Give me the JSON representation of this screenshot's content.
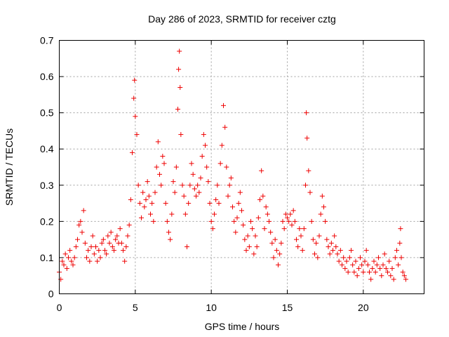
{
  "chart_data": {
    "type": "scatter",
    "title": "Day 286 of 2023, SRMTID for receiver cztg",
    "xlabel": "GPS time / hours",
    "ylabel": "SRMTID / TECUs",
    "xlim": [
      0,
      24
    ],
    "ylim": [
      0,
      0.7
    ],
    "x_ticks": [
      0,
      5,
      10,
      15,
      20
    ],
    "x_tick_labels": [
      "0",
      "5",
      "10",
      "15",
      "20"
    ],
    "y_ticks": [
      0,
      0.1,
      0.2,
      0.3,
      0.4,
      0.5,
      0.6,
      0.7
    ],
    "y_tick_labels": [
      "0",
      "0.1",
      "0.2",
      "0.3",
      "0.4",
      "0.5",
      "0.6",
      "0.7"
    ],
    "grid": true,
    "marker": "+",
    "series_color": "#ee0000",
    "series": [
      {
        "name": "SRMTID",
        "points": [
          [
            0.0,
            0.06
          ],
          [
            0.1,
            0.04
          ],
          [
            0.2,
            0.09
          ],
          [
            0.3,
            0.08
          ],
          [
            0.4,
            0.11
          ],
          [
            0.5,
            0.07
          ],
          [
            0.6,
            0.1
          ],
          [
            0.7,
            0.12
          ],
          [
            0.8,
            0.09
          ],
          [
            0.9,
            0.08
          ],
          [
            1.0,
            0.1
          ],
          [
            1.1,
            0.13
          ],
          [
            1.2,
            0.15
          ],
          [
            1.3,
            0.19
          ],
          [
            1.4,
            0.2
          ],
          [
            1.5,
            0.17
          ],
          [
            1.6,
            0.23
          ],
          [
            1.7,
            0.14
          ],
          [
            1.8,
            0.1
          ],
          [
            1.9,
            0.12
          ],
          [
            2.0,
            0.09
          ],
          [
            2.1,
            0.13
          ],
          [
            2.2,
            0.16
          ],
          [
            2.3,
            0.11
          ],
          [
            2.4,
            0.13
          ],
          [
            2.5,
            0.09
          ],
          [
            2.6,
            0.12
          ],
          [
            2.7,
            0.1
          ],
          [
            2.8,
            0.14
          ],
          [
            2.9,
            0.15
          ],
          [
            3.0,
            0.12
          ],
          [
            3.1,
            0.11
          ],
          [
            3.2,
            0.16
          ],
          [
            3.3,
            0.14
          ],
          [
            3.4,
            0.17
          ],
          [
            3.5,
            0.13
          ],
          [
            3.6,
            0.12
          ],
          [
            3.7,
            0.15
          ],
          [
            3.8,
            0.16
          ],
          [
            3.9,
            0.14
          ],
          [
            4.0,
            0.18
          ],
          [
            4.1,
            0.14
          ],
          [
            4.2,
            0.12
          ],
          [
            4.3,
            0.09
          ],
          [
            4.4,
            0.13
          ],
          [
            4.5,
            0.16
          ],
          [
            4.6,
            0.19
          ],
          [
            4.7,
            0.26
          ],
          [
            4.8,
            0.39
          ],
          [
            4.9,
            0.54
          ],
          [
            4.95,
            0.59
          ],
          [
            5.0,
            0.49
          ],
          [
            5.1,
            0.44
          ],
          [
            5.2,
            0.3
          ],
          [
            5.3,
            0.25
          ],
          [
            5.4,
            0.21
          ],
          [
            5.5,
            0.28
          ],
          [
            5.6,
            0.24
          ],
          [
            5.7,
            0.26
          ],
          [
            5.8,
            0.31
          ],
          [
            5.9,
            0.27
          ],
          [
            6.0,
            0.22
          ],
          [
            6.1,
            0.25
          ],
          [
            6.2,
            0.2
          ],
          [
            6.3,
            0.28
          ],
          [
            6.4,
            0.35
          ],
          [
            6.5,
            0.42
          ],
          [
            6.6,
            0.33
          ],
          [
            6.7,
            0.3
          ],
          [
            6.8,
            0.38
          ],
          [
            6.9,
            0.36
          ],
          [
            7.0,
            0.25
          ],
          [
            7.1,
            0.2
          ],
          [
            7.2,
            0.17
          ],
          [
            7.3,
            0.15
          ],
          [
            7.4,
            0.22
          ],
          [
            7.5,
            0.31
          ],
          [
            7.6,
            0.28
          ],
          [
            7.7,
            0.35
          ],
          [
            7.8,
            0.51
          ],
          [
            7.85,
            0.62
          ],
          [
            7.9,
            0.67
          ],
          [
            7.95,
            0.57
          ],
          [
            8.0,
            0.44
          ],
          [
            8.1,
            0.3
          ],
          [
            8.2,
            0.27
          ],
          [
            8.3,
            0.22
          ],
          [
            8.4,
            0.13
          ],
          [
            8.5,
            0.25
          ],
          [
            8.6,
            0.3
          ],
          [
            8.7,
            0.36
          ],
          [
            8.8,
            0.33
          ],
          [
            8.9,
            0.29
          ],
          [
            9.0,
            0.27
          ],
          [
            9.1,
            0.3
          ],
          [
            9.2,
            0.28
          ],
          [
            9.3,
            0.32
          ],
          [
            9.4,
            0.38
          ],
          [
            9.5,
            0.44
          ],
          [
            9.6,
            0.41
          ],
          [
            9.7,
            0.35
          ],
          [
            9.8,
            0.31
          ],
          [
            9.9,
            0.25
          ],
          [
            10.0,
            0.2
          ],
          [
            10.1,
            0.18
          ],
          [
            10.2,
            0.22
          ],
          [
            10.3,
            0.26
          ],
          [
            10.4,
            0.3
          ],
          [
            10.5,
            0.25
          ],
          [
            10.6,
            0.36
          ],
          [
            10.7,
            0.41
          ],
          [
            10.8,
            0.52
          ],
          [
            10.9,
            0.46
          ],
          [
            11.0,
            0.35
          ],
          [
            11.1,
            0.27
          ],
          [
            11.2,
            0.3
          ],
          [
            11.3,
            0.32
          ],
          [
            11.4,
            0.24
          ],
          [
            11.5,
            0.2
          ],
          [
            11.6,
            0.17
          ],
          [
            11.7,
            0.21
          ],
          [
            11.8,
            0.25
          ],
          [
            11.9,
            0.28
          ],
          [
            12.0,
            0.23
          ],
          [
            12.1,
            0.19
          ],
          [
            12.2,
            0.15
          ],
          [
            12.3,
            0.12
          ],
          [
            12.4,
            0.16
          ],
          [
            12.5,
            0.13
          ],
          [
            12.6,
            0.2
          ],
          [
            12.7,
            0.18
          ],
          [
            12.8,
            0.11
          ],
          [
            12.9,
            0.16
          ],
          [
            13.0,
            0.13
          ],
          [
            13.1,
            0.21
          ],
          [
            13.2,
            0.26
          ],
          [
            13.3,
            0.34
          ],
          [
            13.4,
            0.27
          ],
          [
            13.5,
            0.18
          ],
          [
            13.6,
            0.24
          ],
          [
            13.7,
            0.22
          ],
          [
            13.8,
            0.2
          ],
          [
            13.9,
            0.17
          ],
          [
            14.0,
            0.14
          ],
          [
            14.1,
            0.1
          ],
          [
            14.2,
            0.15
          ],
          [
            14.3,
            0.12
          ],
          [
            14.4,
            0.08
          ],
          [
            14.5,
            0.11
          ],
          [
            14.6,
            0.14
          ],
          [
            14.7,
            0.2
          ],
          [
            14.8,
            0.18
          ],
          [
            14.9,
            0.22
          ],
          [
            15.0,
            0.21
          ],
          [
            15.1,
            0.2
          ],
          [
            15.2,
            0.22
          ],
          [
            15.3,
            0.19
          ],
          [
            15.4,
            0.23
          ],
          [
            15.5,
            0.2
          ],
          [
            15.6,
            0.15
          ],
          [
            15.7,
            0.13
          ],
          [
            15.8,
            0.18
          ],
          [
            15.9,
            0.16
          ],
          [
            16.0,
            0.12
          ],
          [
            16.1,
            0.18
          ],
          [
            16.2,
            0.3
          ],
          [
            16.25,
            0.5
          ],
          [
            16.3,
            0.43
          ],
          [
            16.4,
            0.34
          ],
          [
            16.5,
            0.28
          ],
          [
            16.6,
            0.2
          ],
          [
            16.7,
            0.15
          ],
          [
            16.8,
            0.11
          ],
          [
            16.9,
            0.14
          ],
          [
            17.0,
            0.1
          ],
          [
            17.1,
            0.16
          ],
          [
            17.2,
            0.22
          ],
          [
            17.3,
            0.27
          ],
          [
            17.4,
            0.24
          ],
          [
            17.5,
            0.2
          ],
          [
            17.6,
            0.15
          ],
          [
            17.7,
            0.13
          ],
          [
            17.8,
            0.11
          ],
          [
            17.9,
            0.14
          ],
          [
            18.0,
            0.12
          ],
          [
            18.1,
            0.16
          ],
          [
            18.2,
            0.13
          ],
          [
            18.3,
            0.11
          ],
          [
            18.4,
            0.09
          ],
          [
            18.5,
            0.12
          ],
          [
            18.6,
            0.08
          ],
          [
            18.7,
            0.1
          ],
          [
            18.8,
            0.07
          ],
          [
            18.9,
            0.09
          ],
          [
            19.0,
            0.06
          ],
          [
            19.1,
            0.1
          ],
          [
            19.2,
            0.12
          ],
          [
            19.3,
            0.08
          ],
          [
            19.4,
            0.06
          ],
          [
            19.5,
            0.09
          ],
          [
            19.6,
            0.05
          ],
          [
            19.7,
            0.07
          ],
          [
            19.8,
            0.1
          ],
          [
            19.9,
            0.08
          ],
          [
            20.0,
            0.06
          ],
          [
            20.1,
            0.09
          ],
          [
            20.2,
            0.12
          ],
          [
            20.3,
            0.08
          ],
          [
            20.4,
            0.06
          ],
          [
            20.5,
            0.04
          ],
          [
            20.6,
            0.07
          ],
          [
            20.7,
            0.09
          ],
          [
            20.8,
            0.06
          ],
          [
            20.9,
            0.08
          ],
          [
            21.0,
            0.1
          ],
          [
            21.1,
            0.07
          ],
          [
            21.2,
            0.05
          ],
          [
            21.3,
            0.08
          ],
          [
            21.4,
            0.11
          ],
          [
            21.5,
            0.07
          ],
          [
            21.6,
            0.06
          ],
          [
            21.7,
            0.09
          ],
          [
            21.8,
            0.05
          ],
          [
            21.9,
            0.07
          ],
          [
            22.0,
            0.04
          ],
          [
            22.1,
            0.1
          ],
          [
            22.2,
            0.12
          ],
          [
            22.3,
            0.08
          ],
          [
            22.4,
            0.14
          ],
          [
            22.45,
            0.18
          ],
          [
            22.5,
            0.1
          ],
          [
            22.6,
            0.06
          ],
          [
            22.7,
            0.05
          ],
          [
            22.8,
            0.04
          ]
        ]
      }
    ]
  }
}
